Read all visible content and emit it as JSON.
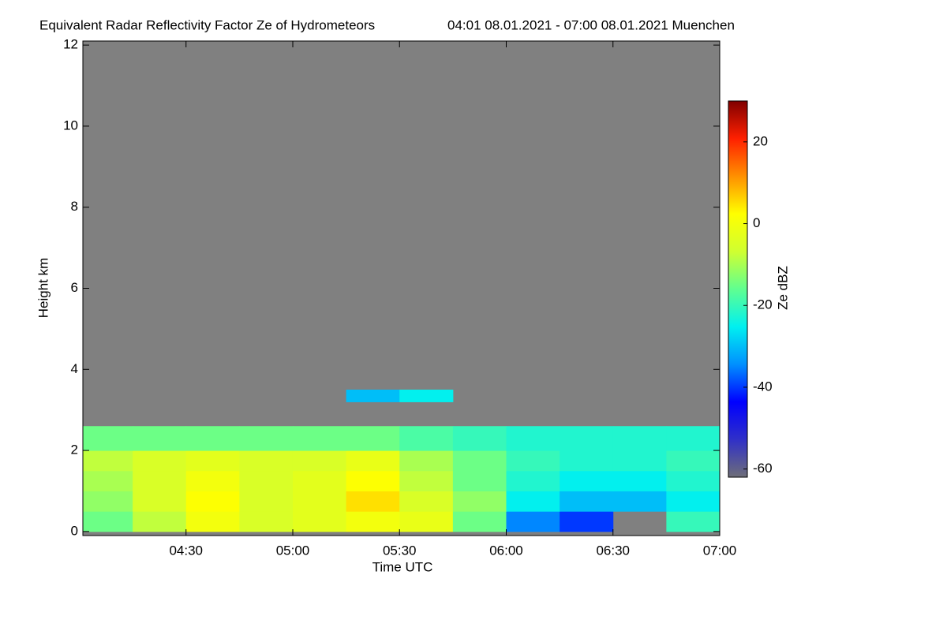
{
  "chart_data": {
    "type": "heatmap",
    "title": "Equivalent Radar Reflectivity Factor Ze of Hydrometeors",
    "subtitle": "04:01 08.01.2021 - 07:00 08.01.2021 Muenchen",
    "x_label": "Time UTC",
    "y_label": "Height km",
    "colorbar_label": "Ze dBZ",
    "xlim": [
      4.0167,
      7.0
    ],
    "xticks": [
      {
        "value": 4.5,
        "label": "04:30"
      },
      {
        "value": 5.0,
        "label": "05:00"
      },
      {
        "value": 5.5,
        "label": "05:30"
      },
      {
        "value": 6.0,
        "label": "06:00"
      },
      {
        "value": 6.5,
        "label": "06:30"
      },
      {
        "value": 7.0,
        "label": "07:00"
      }
    ],
    "ylim": [
      -0.1,
      12.1
    ],
    "yticks": [
      0,
      2,
      4,
      6,
      8,
      10,
      12
    ],
    "zlim": [
      -62,
      30
    ],
    "zticks": [
      -60,
      -40,
      -20,
      0,
      20
    ],
    "colorscale": [
      "#6e6e78",
      "#3030c8",
      "#0000ff",
      "#0090ff",
      "#00f0f0",
      "#60ff90",
      "#d0ff30",
      "#ffff00",
      "#ff9000",
      "#ff2000",
      "#800000"
    ],
    "background_color": "#808080",
    "x_bins": [
      4.0167,
      4.25,
      4.5,
      4.75,
      5.0,
      5.25,
      5.5,
      5.75,
      6.0,
      6.25,
      6.5,
      6.75,
      7.0
    ],
    "y_bins": [
      0,
      0.5,
      1,
      1.5,
      2,
      2.6,
      3.2,
      3.5
    ],
    "z": [
      [
        -15,
        -8,
        0,
        -5,
        -3,
        0,
        -2,
        -15,
        -35,
        -40,
        null,
        -20
      ],
      [
        -12,
        -5,
        2,
        -5,
        -3,
        5,
        -5,
        -12,
        -25,
        -30,
        -30,
        -25
      ],
      [
        -10,
        -5,
        0,
        -5,
        -3,
        2,
        -8,
        -15,
        -22,
        -25,
        -25,
        -22
      ],
      [
        -8,
        -5,
        -3,
        -5,
        -5,
        -2,
        -10,
        -15,
        -20,
        -22,
        -22,
        -20
      ],
      [
        -15,
        -15,
        -15,
        -15,
        -15,
        -15,
        -18,
        -20,
        -22,
        -22,
        -22,
        -22
      ],
      [
        null,
        null,
        null,
        null,
        null,
        null,
        null,
        null,
        null,
        null,
        null,
        null
      ],
      [
        null,
        null,
        null,
        null,
        null,
        -30,
        -25,
        null,
        null,
        null,
        null,
        null
      ]
    ]
  }
}
